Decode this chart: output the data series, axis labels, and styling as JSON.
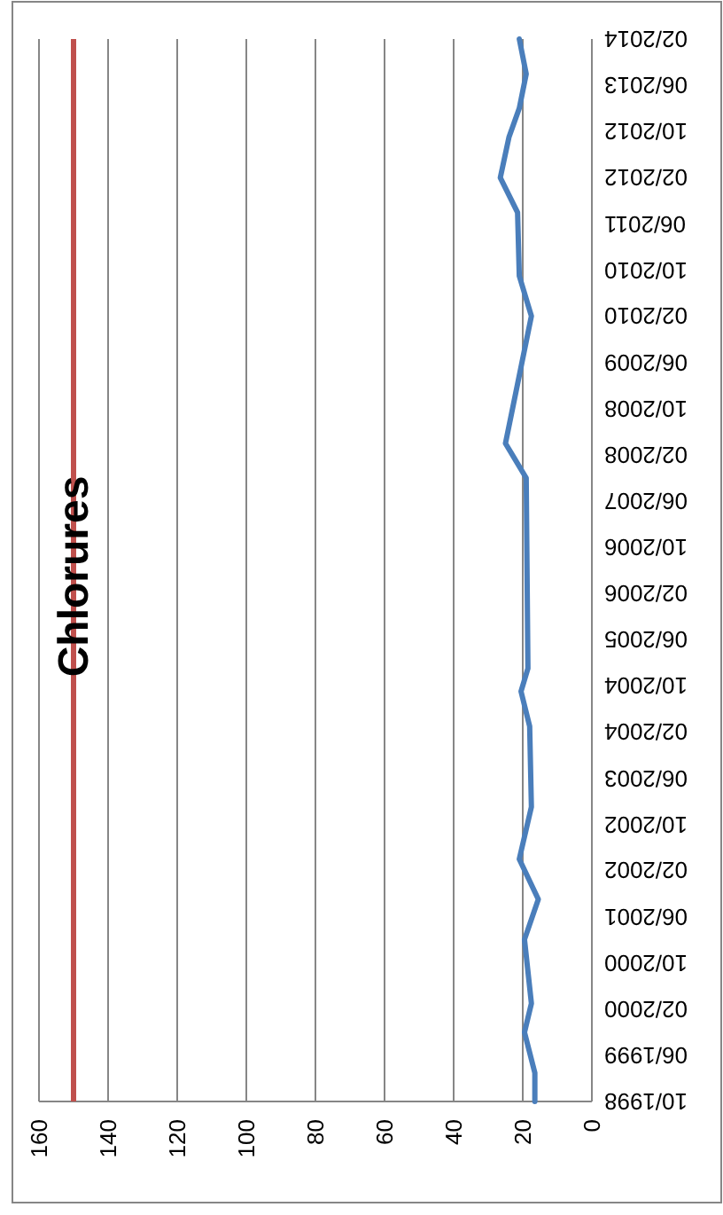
{
  "chart_data": {
    "type": "line",
    "orientation": "horizontal",
    "title": "Chlorures",
    "x": [
      "1998-10",
      "1999-03",
      "1999-10",
      "2000-03",
      "2001-02",
      "2001-09",
      "2002-04",
      "2003-01",
      "2004-03",
      "2004-09",
      "2005-01",
      "2007-10",
      "2008-04",
      "2010-02",
      "2010-09",
      "2011-08",
      "2012-02",
      "2012-09",
      "2013-02",
      "2013-08",
      "2014-02"
    ],
    "series": [
      {
        "color": "#4a7ebb",
        "values": [
          16.5,
          16.5,
          19.5,
          17.5,
          19.5,
          15.5,
          21,
          17.5,
          18,
          20.5,
          18.5,
          19,
          25,
          17.5,
          21,
          21.5,
          26.5,
          24,
          21,
          19,
          21
        ]
      }
    ],
    "ylim": [
      "1998-10",
      "2014-02"
    ],
    "yticks": [
      {
        "value": "1998-10",
        "label": "10/1998"
      },
      {
        "value": "1999-06",
        "label": "06/1999"
      },
      {
        "value": "2000-02",
        "label": "02/2000"
      },
      {
        "value": "2000-10",
        "label": "10/2000"
      },
      {
        "value": "2001-06",
        "label": "06/2001"
      },
      {
        "value": "2002-02",
        "label": "02/2002"
      },
      {
        "value": "2002-10",
        "label": "10/2002"
      },
      {
        "value": "2003-06",
        "label": "06/2003"
      },
      {
        "value": "2004-02",
        "label": "02/2004"
      },
      {
        "value": "2004-10",
        "label": "10/2004"
      },
      {
        "value": "2005-06",
        "label": "06/2005"
      },
      {
        "value": "2006-02",
        "label": "02/2006"
      },
      {
        "value": "2006-10",
        "label": "10/2006"
      },
      {
        "value": "2007-06",
        "label": "06/2007"
      },
      {
        "value": "2008-02",
        "label": "02/2008"
      },
      {
        "value": "2008-10",
        "label": "10/2008"
      },
      {
        "value": "2009-06",
        "label": "06/2009"
      },
      {
        "value": "2010-02",
        "label": "02/2010"
      },
      {
        "value": "2010-10",
        "label": "10/2010"
      },
      {
        "value": "2011-06",
        "label": "06/2011"
      },
      {
        "value": "2012-02",
        "label": "02/2012"
      },
      {
        "value": "2012-10",
        "label": "10/2012"
      },
      {
        "value": "2013-06",
        "label": "06/2013"
      },
      {
        "value": "2014-02",
        "label": "02/2014"
      }
    ],
    "xlim": [
      160,
      0
    ],
    "xticks": [
      160,
      140,
      120,
      100,
      80,
      60,
      40,
      20,
      0
    ],
    "ref_lines": [
      {
        "axis": "x",
        "value": 150,
        "color": "#c0504d"
      }
    ],
    "grid": "x",
    "marker": "none",
    "line_style": "solid"
  }
}
